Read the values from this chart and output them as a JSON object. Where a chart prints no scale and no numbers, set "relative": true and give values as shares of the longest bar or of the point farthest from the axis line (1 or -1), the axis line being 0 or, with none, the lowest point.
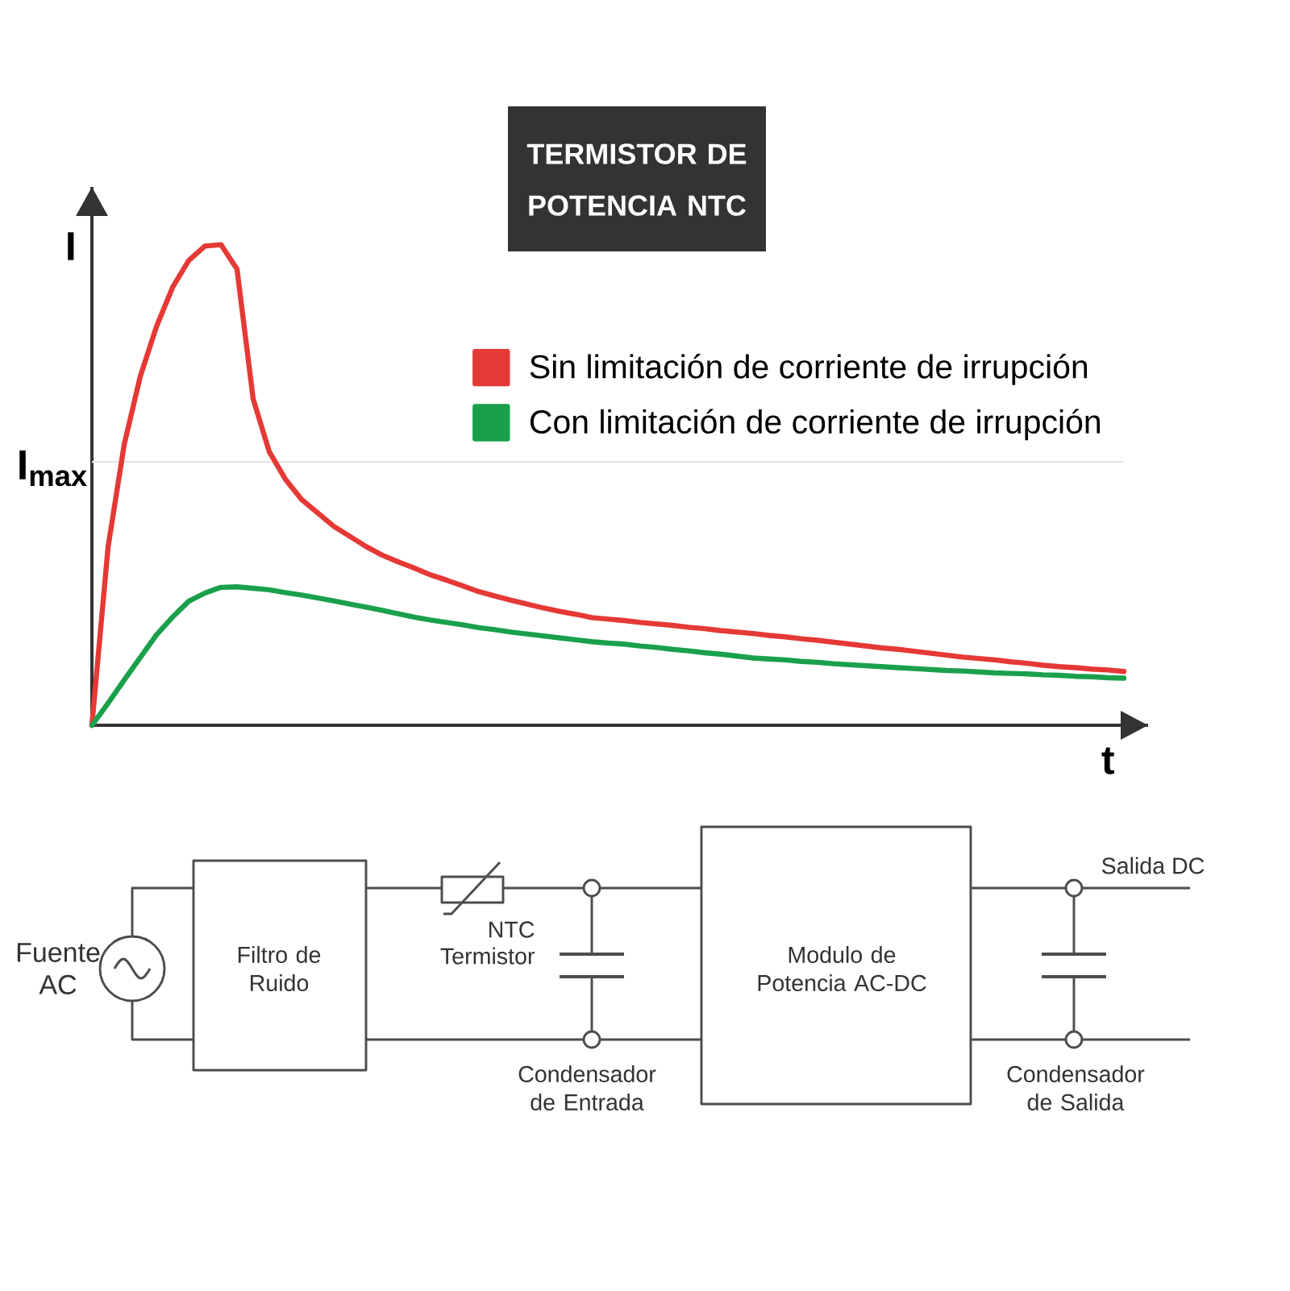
{
  "chart_data": [
    {
      "type": "line",
      "title": "TERMISTOR DE POTENCIA NTC",
      "xlabel": "t",
      "ylabel": "I",
      "relative": true,
      "categories": [
        null,
        null,
        null,
        null,
        null,
        null,
        null,
        null,
        null,
        null,
        null,
        null,
        null,
        null,
        null,
        null,
        null,
        null,
        null,
        null,
        null,
        null,
        null,
        null,
        null,
        null,
        null,
        null,
        null,
        null,
        null,
        null,
        null,
        null,
        null,
        null,
        null,
        null,
        null,
        null,
        null,
        null,
        null,
        null,
        null,
        null,
        null,
        null,
        null,
        null,
        null,
        null,
        null,
        null,
        null,
        null,
        null,
        null,
        null,
        null,
        null,
        null,
        null,
        null,
        null
      ],
      "series": [
        {
          "name": "Sin limitación de corriente de irrupción",
          "color": "#e53935",
          "values": [
            0,
            0.37,
            0.584,
            0.726,
            0.829,
            0.911,
            0.967,
            0.997,
            1.0,
            0.949,
            0.679,
            0.569,
            0.512,
            0.47,
            0.442,
            0.414,
            0.393,
            0.372,
            0.354,
            0.34,
            0.327,
            0.313,
            0.302,
            0.29,
            0.278,
            0.269,
            0.26,
            0.252,
            0.244,
            0.237,
            0.231,
            0.224,
            0.221,
            0.218,
            0.214,
            0.211,
            0.208,
            0.204,
            0.201,
            0.197,
            0.194,
            0.191,
            0.187,
            0.184,
            0.18,
            0.177,
            0.173,
            0.169,
            0.165,
            0.161,
            0.158,
            0.154,
            0.15,
            0.146,
            0.142,
            0.139,
            0.136,
            0.132,
            0.129,
            0.125,
            0.122,
            0.12,
            0.117,
            0.115,
            0.112
          ]
        },
        {
          "name": "Con limitación de corriente de irrupción",
          "color": "#1aa04b",
          "values": [
            0,
            0.046,
            0.094,
            0.141,
            0.188,
            0.225,
            0.258,
            0.275,
            0.287,
            0.288,
            0.285,
            0.282,
            0.276,
            0.271,
            0.265,
            0.259,
            0.252,
            0.246,
            0.239,
            0.232,
            0.225,
            0.219,
            0.214,
            0.209,
            0.203,
            0.199,
            0.194,
            0.19,
            0.186,
            0.182,
            0.178,
            0.174,
            0.171,
            0.169,
            0.165,
            0.162,
            0.158,
            0.155,
            0.151,
            0.148,
            0.144,
            0.14,
            0.138,
            0.136,
            0.133,
            0.131,
            0.128,
            0.126,
            0.124,
            0.122,
            0.12,
            0.118,
            0.116,
            0.114,
            0.113,
            0.111,
            0.109,
            0.108,
            0.107,
            0.105,
            0.104,
            0.102,
            0.101,
            0.099,
            0.098
          ]
        }
      ],
      "ref_lines": [
        {
          "axis": "y",
          "value": 0.548,
          "label": "I$_{max}$",
          "color": "#e6e6e6"
        }
      ],
      "legend": "top right"
    },
    {
      "type": "other",
      "annotations": [
        "Fuente AC",
        "Filtro de Ruido",
        "NTC Termistor",
        "Condensador de Entrada",
        "Modulo de Potencia AC-DC",
        "Salida DC",
        "Condensador de Salida"
      ]
    }
  ]
}
